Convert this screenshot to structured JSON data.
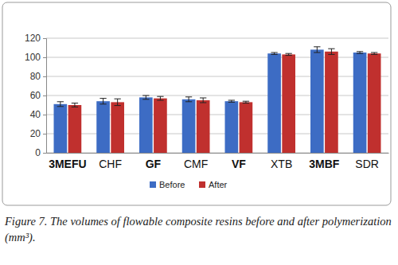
{
  "chart_data": {
    "type": "bar",
    "title": "Figure 7. The volumes of flowable composite resins before and after polymerization (mm³).",
    "categories": [
      "3MEFU",
      "CHF",
      "GF",
      "CMF",
      "VF",
      "XTB",
      "3MBF",
      "SDR"
    ],
    "series": [
      {
        "name": "Before",
        "color": "#3d6cc4",
        "values": [
          51,
          54,
          58,
          56,
          54,
          104,
          108,
          105
        ],
        "errors": [
          2.5,
          3,
          2,
          2.5,
          1,
          1,
          3,
          1
        ]
      },
      {
        "name": "After",
        "color": "#c0302e",
        "values": [
          50,
          53,
          57,
          55,
          53,
          103,
          106,
          104
        ],
        "errors": [
          2,
          3.5,
          2,
          2.5,
          1,
          1,
          3,
          1
        ]
      }
    ],
    "ylim": [
      0,
      120
    ],
    "yticks": [
      0,
      20,
      40,
      60,
      80,
      100,
      120
    ],
    "grid": true,
    "legend": "bottom"
  }
}
